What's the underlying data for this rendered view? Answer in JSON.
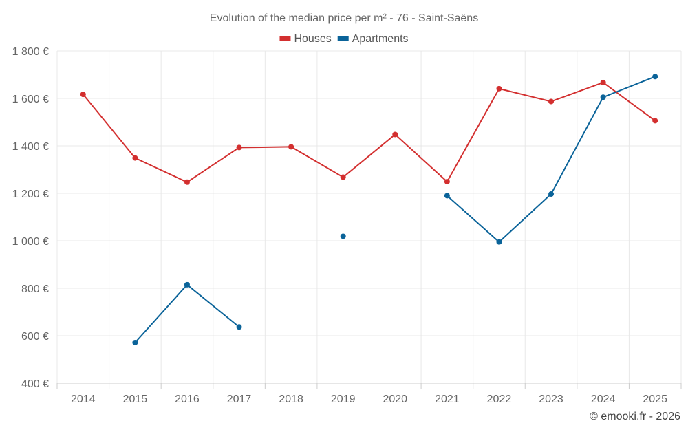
{
  "chart_data": {
    "type": "line",
    "title": "Evolution of the median price per m² - 76 - Saint-Saëns",
    "xlabel": "",
    "ylabel": "",
    "categories": [
      "2014",
      "2015",
      "2016",
      "2017",
      "2018",
      "2019",
      "2020",
      "2021",
      "2022",
      "2023",
      "2024",
      "2025"
    ],
    "ylim": [
      400,
      1800
    ],
    "yticks": [
      400,
      600,
      800,
      1000,
      1200,
      1400,
      1600,
      1800
    ],
    "ytick_labels": [
      "400 €",
      "600 €",
      "800 €",
      "1 000 €",
      "1 200 €",
      "1 400 €",
      "1 600 €",
      "1 800 €"
    ],
    "grid": true,
    "legend_position": "top-center",
    "series": [
      {
        "name": "Houses",
        "color": "#d32f2f",
        "values": [
          1617,
          1349,
          1247,
          1393,
          1396,
          1268,
          1448,
          1249,
          1641,
          1587,
          1667,
          1506
        ]
      },
      {
        "name": "Apartments",
        "color": "#0a6399",
        "values": [
          null,
          571,
          815,
          637,
          null,
          1019,
          null,
          1190,
          995,
          1197,
          1605,
          1692
        ]
      }
    ]
  },
  "credit": "© emooki.fr - 2026"
}
